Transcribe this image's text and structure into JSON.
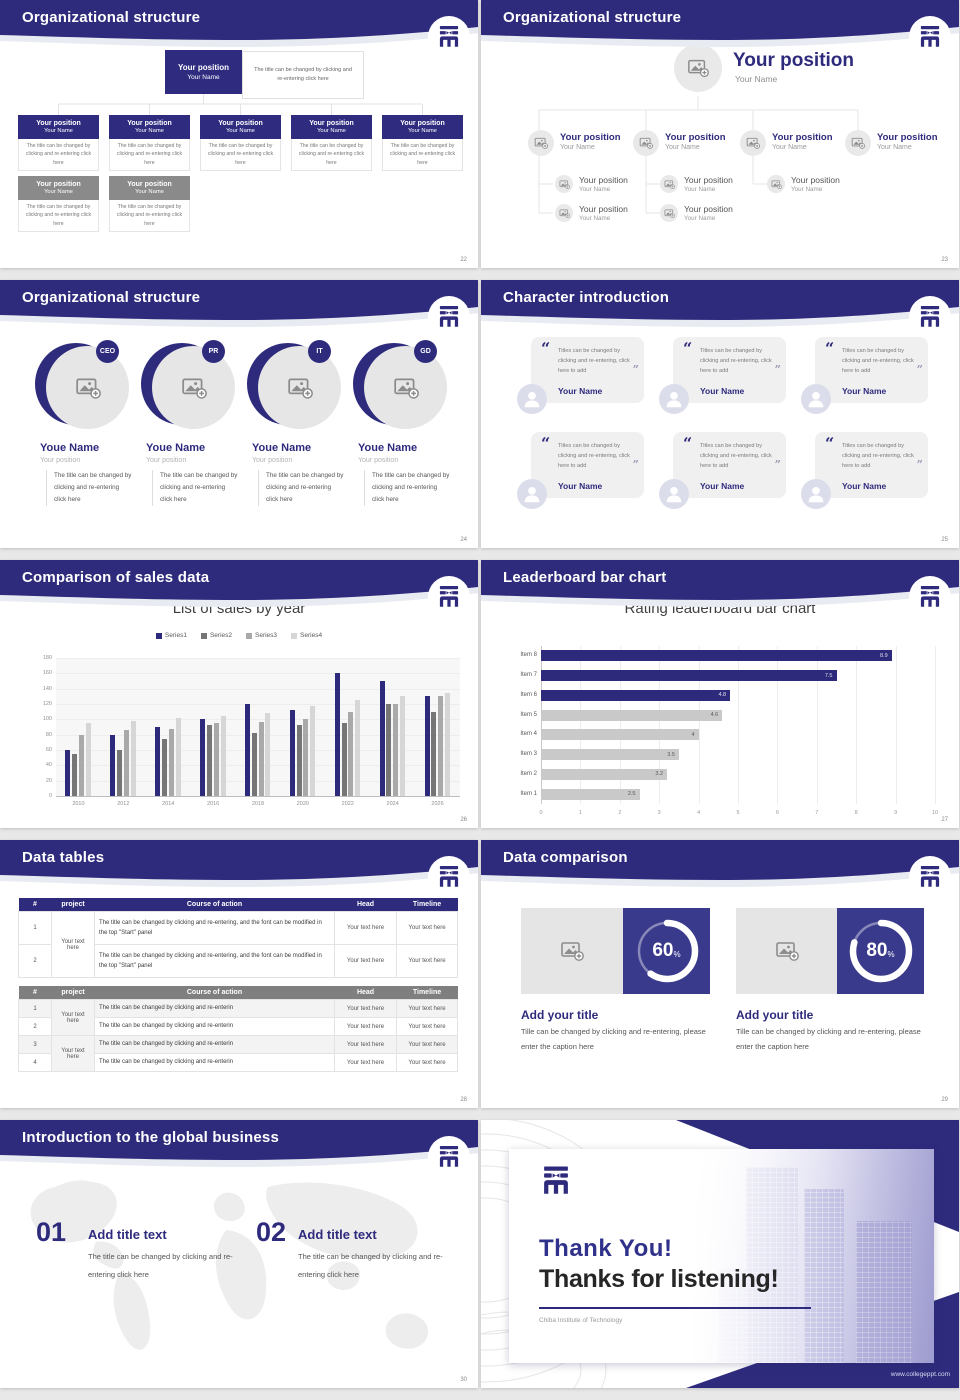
{
  "accent": "#2e2b7d",
  "shared": {
    "position": "Your position",
    "name": "Your Name",
    "note": "The title can be changed by clicking and re-entering click here",
    "text_here": "Your text here",
    "percent": "%",
    "quote_open": "“",
    "quote_close": "”"
  },
  "slides": [
    {
      "title": "Organizational structure",
      "page": "22"
    },
    {
      "title": "Organizational structure",
      "page": "23"
    },
    {
      "title": "Organizational structure",
      "page": "24",
      "badges": [
        "CEO",
        "PR",
        "IT",
        "GD"
      ],
      "name": "Youe Name",
      "position": "Your position",
      "note": "The title can be changed by clicking and re-entering click here"
    },
    {
      "title": "Character introduction",
      "page": "25",
      "quote": "Titles can be changed by clicking and re-entering, click here to add",
      "name": "Your Name"
    },
    {
      "title": "Comparison of sales data",
      "page": "26"
    },
    {
      "title": "Leaderboard bar chart",
      "page": "27"
    },
    {
      "title": "Data tables",
      "page": "28",
      "headers": [
        "#",
        "project",
        "Course of action",
        "Head",
        "Timeline"
      ],
      "t1": {
        "nums": [
          "1",
          "2"
        ],
        "project": "Your text here",
        "course": "The title can be changed by clicking and re-entering, and the font can be modified in the top \"Start\" panel"
      },
      "t2": {
        "nums": [
          "1",
          "2",
          "3",
          "4"
        ],
        "project": "Your text here",
        "course": "The title can be changed by clicking and re-enterin"
      }
    },
    {
      "title": "Data comparison",
      "page": "29",
      "items": [
        {
          "pct": 60,
          "label": "60"
        },
        {
          "pct": 80,
          "label": "80"
        }
      ],
      "item_title": "Add your title",
      "caption": "Tille can be changed by clicking and re-entering, please enter the caption here"
    },
    {
      "title": "Introduction to the global business",
      "page": "30",
      "steps": [
        {
          "num": "01"
        },
        {
          "num": "02"
        }
      ],
      "step_title": "Add title text",
      "step_text": "The title can be changed by clicking and re-entering click here"
    },
    {
      "thank_title": "Thank You!",
      "thank_sub": "Thanks for listening!",
      "org": "Chiba Institute of Technology",
      "url": "www.collegeppt.com"
    }
  ],
  "chart_data": [
    {
      "type": "bar",
      "title": "List of sales by year",
      "categories": [
        "2010",
        "2012",
        "2014",
        "2016",
        "2018",
        "2020",
        "2022",
        "2024",
        "2026"
      ],
      "series": [
        {
          "name": "Series1",
          "values": [
            60,
            80,
            90,
            100,
            120,
            112,
            160,
            150,
            130
          ]
        },
        {
          "name": "Series2",
          "values": [
            55,
            60,
            75,
            92,
            82,
            92,
            95,
            120,
            110
          ]
        },
        {
          "name": "Series3",
          "values": [
            80,
            86,
            88,
            95,
            97,
            100,
            110,
            120,
            130
          ]
        },
        {
          "name": "Series4",
          "values": [
            95,
            98,
            102,
            105,
            108,
            118,
            125,
            130,
            135
          ]
        }
      ],
      "colors": [
        "#2d2a7b",
        "#767676",
        "#a9a9a9",
        "#d6d6d6"
      ],
      "xlabel": "",
      "ylabel": "",
      "ylim": [
        0,
        180
      ],
      "ytick": 20,
      "legend_position": "top"
    },
    {
      "type": "bar",
      "orientation": "horizontal",
      "title": "Rating leaderboard bar chart",
      "categories": [
        "Item 1",
        "Item 2",
        "Item 3",
        "Item 4",
        "Item 5",
        "Item 6",
        "Item 7",
        "Item 8"
      ],
      "values": [
        2.5,
        3.2,
        3.5,
        4,
        4.6,
        4.8,
        7.5,
        8.9
      ],
      "colors": [
        "#c9c9c9",
        "#c9c9c9",
        "#c9c9c9",
        "#c9c9c9",
        "#c9c9c9",
        "#2d2a7b",
        "#2d2a7b",
        "#2d2a7b"
      ],
      "xlim": [
        0,
        10
      ],
      "xtick": 1,
      "data_labels": true,
      "grid": true
    }
  ]
}
